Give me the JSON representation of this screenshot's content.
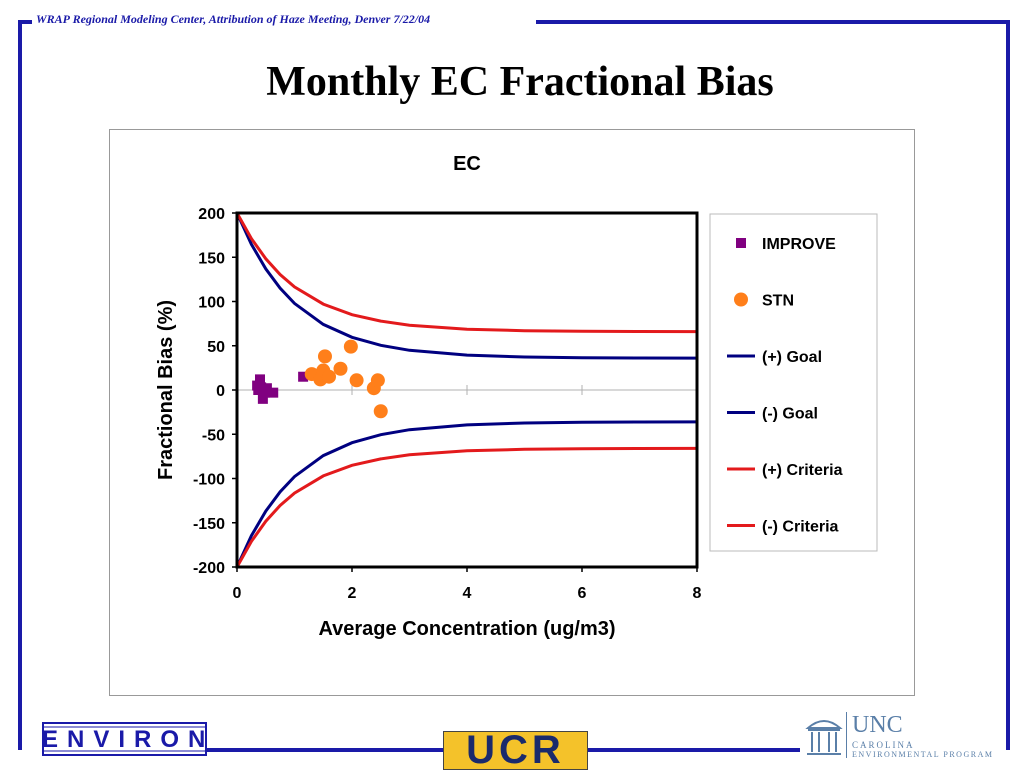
{
  "header": {
    "meeting_line": "WRAP Regional Modeling Center, Attribution of Haze Meeting, Denver 7/22/04",
    "title": "Monthly EC Fractional Bias"
  },
  "colors": {
    "frame": "#1a1aa8",
    "improve": "#800080",
    "stn": "#ff7f1a",
    "goal": "#000080",
    "criteria": "#e31a1c"
  },
  "chart_data": {
    "type": "scatter",
    "title": "EC",
    "xlabel": "Average Concentration (ug/m3)",
    "ylabel": "Fractional Bias (%)",
    "xlim": [
      0,
      8
    ],
    "ylim": [
      -200,
      200
    ],
    "xticks": [
      0,
      2,
      4,
      6,
      8
    ],
    "yticks": [
      200,
      150,
      100,
      50,
      0,
      -50,
      -100,
      -150,
      -200
    ],
    "grid": "horizontal",
    "legend_position": "right",
    "series": [
      {
        "name": "IMPROVE",
        "kind": "points",
        "marker": "square",
        "color": "#800080",
        "points": [
          [
            0.35,
            5
          ],
          [
            0.37,
            0
          ],
          [
            0.4,
            12
          ],
          [
            0.42,
            3
          ],
          [
            0.45,
            -10
          ],
          [
            0.48,
            -3
          ],
          [
            0.52,
            2
          ],
          [
            0.63,
            -3
          ],
          [
            1.15,
            15
          ]
        ]
      },
      {
        "name": "STN",
        "kind": "points",
        "marker": "circle",
        "color": "#ff7f1a",
        "points": [
          [
            1.3,
            18
          ],
          [
            1.45,
            12
          ],
          [
            1.5,
            22
          ],
          [
            1.53,
            38
          ],
          [
            1.6,
            15
          ],
          [
            1.8,
            24
          ],
          [
            1.98,
            49
          ],
          [
            2.08,
            11
          ],
          [
            2.38,
            2
          ],
          [
            2.45,
            11
          ],
          [
            2.5,
            -24
          ]
        ]
      },
      {
        "name": "(+) Goal",
        "kind": "line",
        "color": "#000080",
        "x": [
          0,
          0.25,
          0.5,
          0.75,
          1,
          1.5,
          2,
          2.5,
          3,
          4,
          5,
          6,
          7,
          8
        ],
        "y": [
          200,
          164.6,
          136.8,
          115.0,
          97.9,
          74.1,
          59.5,
          50.5,
          44.9,
          39.4,
          37.3,
          36.5,
          36.2,
          36.1
        ]
      },
      {
        "name": "(-) Goal",
        "kind": "line",
        "color": "#000080",
        "x": [
          0,
          0.25,
          0.5,
          0.75,
          1,
          1.5,
          2,
          2.5,
          3,
          4,
          5,
          6,
          7,
          8
        ],
        "y": [
          -200,
          -164.6,
          -136.8,
          -115.0,
          -97.9,
          -74.1,
          -59.5,
          -50.5,
          -44.9,
          -39.4,
          -37.3,
          -36.5,
          -36.2,
          -36.1
        ]
      },
      {
        "name": "(+) Criteria",
        "kind": "line",
        "color": "#e31a1c",
        "x": [
          0,
          0.25,
          0.5,
          0.75,
          1,
          1.5,
          2,
          2.5,
          3,
          4,
          5,
          6,
          7,
          8
        ],
        "y": [
          200,
          171.1,
          148.3,
          130.5,
          116.5,
          97.1,
          85.1,
          77.8,
          73.2,
          68.7,
          67.0,
          66.4,
          66.1,
          66.0
        ]
      },
      {
        "name": "(-) Criteria",
        "kind": "line",
        "color": "#e31a1c",
        "x": [
          0,
          0.25,
          0.5,
          0.75,
          1,
          1.5,
          2,
          2.5,
          3,
          4,
          5,
          6,
          7,
          8
        ],
        "y": [
          -200,
          -171.1,
          -148.3,
          -130.5,
          -116.5,
          -97.1,
          -85.1,
          -77.8,
          -73.2,
          -68.7,
          -67.0,
          -66.4,
          -66.1,
          -66.0
        ]
      }
    ]
  },
  "logos": {
    "environ": "ENVIRON",
    "ucr": "UCR",
    "unc_name": "UNC",
    "unc_sub1": "CAROLINA",
    "unc_sub2": "ENVIRONMENTAL PROGRAM",
    "unc_icon": "old-well-icon"
  }
}
